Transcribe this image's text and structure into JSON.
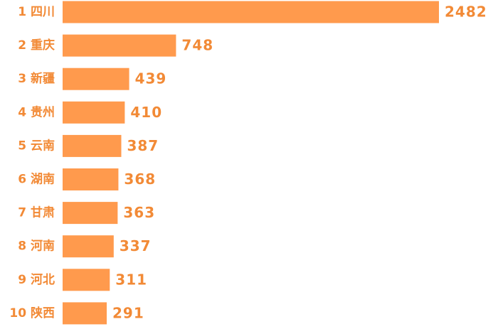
{
  "chart_data": {
    "type": "bar",
    "orientation": "horizontal",
    "categories": [
      "1 四川",
      "2 重庆",
      "3 新疆",
      "4 贵州",
      "5 云南",
      "6 湖南",
      "7 甘肃",
      "8 河南",
      "9 河北",
      "10 陕西"
    ],
    "values": [
      2482,
      748,
      439,
      410,
      387,
      368,
      363,
      337,
      311,
      291
    ],
    "color": "#ff9a4d",
    "label_color": "#f28a36"
  }
}
